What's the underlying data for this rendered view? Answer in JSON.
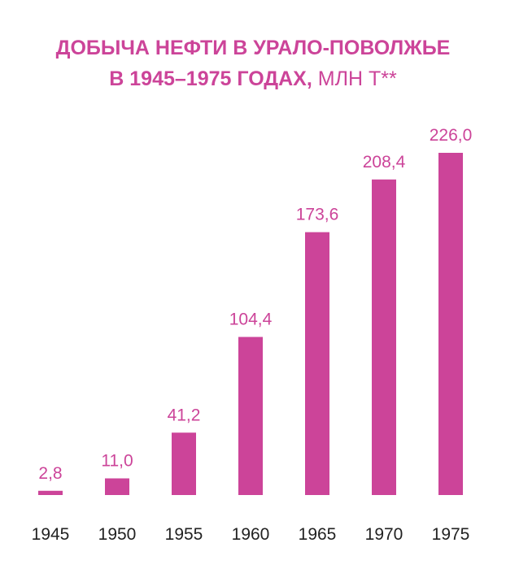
{
  "chart_data": {
    "type": "bar",
    "title_line1": "ДОБЫЧА НЕФТИ В УРАЛО-ПОВОЛЖЬЕ",
    "title_line2": "В 1945–1975 ГОДАХ,",
    "unit": "МЛН Т**",
    "categories": [
      "1945",
      "1950",
      "1955",
      "1960",
      "1965",
      "1970",
      "1975"
    ],
    "values": [
      2.8,
      11.0,
      41.2,
      104.4,
      173.6,
      208.4,
      226.0
    ],
    "value_labels": [
      "2,8",
      "11,0",
      "41,2",
      "104,4",
      "173,6",
      "208,4",
      "226,0"
    ],
    "bar_color": "#cc4499",
    "ylim": [
      0,
      226
    ]
  }
}
